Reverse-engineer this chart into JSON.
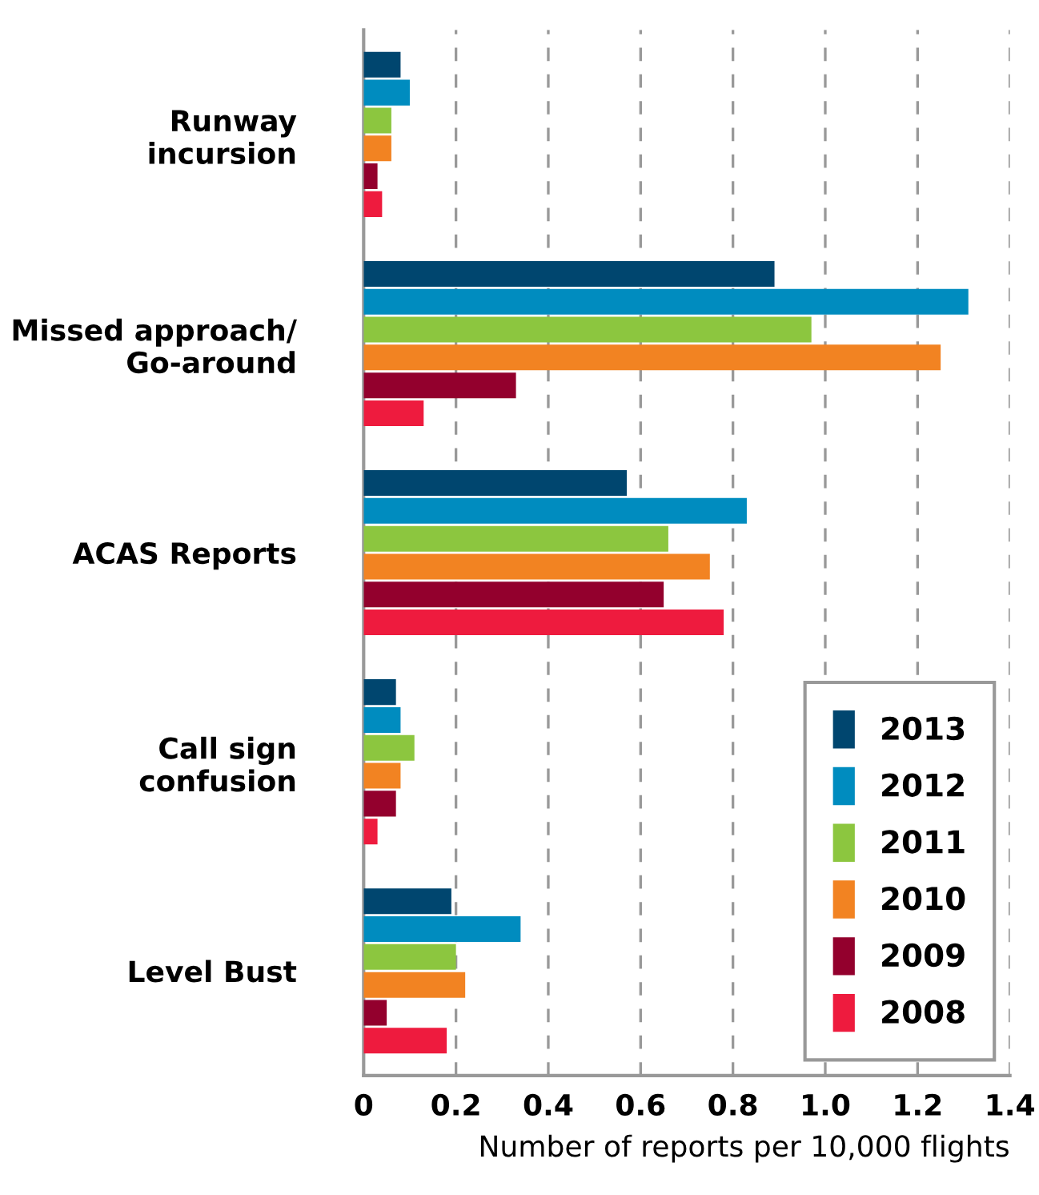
{
  "chart_data": {
    "type": "bar",
    "orientation": "horizontal",
    "xlabel": "Number of reports per 10,000 flights",
    "categories": [
      "Runway\nincursion",
      "Missed approach/\nGo-around",
      "ACAS Reports",
      "Call sign\nconfusion",
      "Level Bust"
    ],
    "series": [
      {
        "name": "2013",
        "color": "#00466f",
        "values": [
          0.08,
          0.89,
          0.57,
          0.07,
          0.19
        ]
      },
      {
        "name": "2012",
        "color": "#008cbf",
        "values": [
          0.1,
          1.31,
          0.83,
          0.08,
          0.34
        ]
      },
      {
        "name": "2011",
        "color": "#8cc63f",
        "values": [
          0.06,
          0.97,
          0.66,
          0.11,
          0.2
        ]
      },
      {
        "name": "2010",
        "color": "#f28322",
        "values": [
          0.06,
          1.25,
          0.75,
          0.08,
          0.22
        ]
      },
      {
        "name": "2009",
        "color": "#93002d",
        "values": [
          0.03,
          0.33,
          0.65,
          0.07,
          0.05
        ]
      },
      {
        "name": "2008",
        "color": "#ee1b3e",
        "values": [
          0.04,
          0.13,
          0.78,
          0.03,
          0.18
        ]
      }
    ],
    "xlim": [
      0,
      1.4
    ],
    "xticks": [
      0,
      0.2,
      0.4,
      0.6,
      0.8,
      {
        "value": 1.0,
        "label": "1.0"
      },
      1.2,
      1.4
    ],
    "grid": "x",
    "legend": "bottom right"
  }
}
